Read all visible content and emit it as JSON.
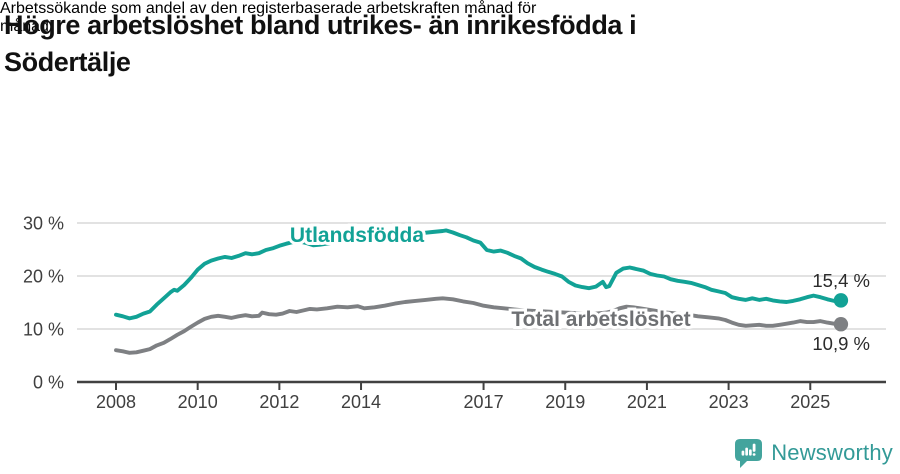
{
  "header": {
    "title_lines": [
      "Högre arbetslöshet bland utrikes- än inrikesfödda i",
      "Södertälje"
    ],
    "subtitle_lines": [
      "Arbetssökande som andel av den registerbaserade arbetskraften månad för",
      "månad."
    ]
  },
  "chart_data": {
    "type": "line",
    "title": "Högre arbetslöshet bland utrikes- än inrikesfödda i Södertälje",
    "subtitle": "Arbetssökande som andel av den registerbaserade arbetskraften månad för månad.",
    "xlabel": "",
    "ylabel": "",
    "grid": true,
    "legend_position": "inline-on-lines",
    "x_axis": {
      "ticks": [
        2008,
        2010,
        2012,
        2014,
        2017,
        2019,
        2021,
        2023,
        2025
      ],
      "tick_labels": [
        "2008",
        "2010",
        "2012",
        "2014",
        "2017",
        "2019",
        "2021",
        "2023",
        "2025"
      ],
      "range": [
        2007.05,
        2026.85
      ]
    },
    "y_axis": {
      "ticks": [
        0,
        10,
        20,
        30
      ],
      "tick_labels": [
        "0 %",
        "10 %",
        "20 %",
        "30 %"
      ],
      "range": [
        0,
        30
      ],
      "unit": "%"
    },
    "colors": {
      "grid": "#d9d9d9",
      "axis": "#414141",
      "axis_text": "#3f3f3f",
      "end_label_text": "#2b2b2b"
    },
    "series": [
      {
        "name": "Utlandsfödda",
        "color": "#12a296",
        "label_color": "#12a296",
        "end_label": "15,4 %",
        "end_value": 15.4,
        "points": [
          [
            2008.0,
            12.7
          ],
          [
            2008.17,
            12.4
          ],
          [
            2008.33,
            12.0
          ],
          [
            2008.5,
            12.3
          ],
          [
            2008.67,
            12.9
          ],
          [
            2008.83,
            13.3
          ],
          [
            2009.0,
            14.6
          ],
          [
            2009.17,
            15.8
          ],
          [
            2009.33,
            16.9
          ],
          [
            2009.42,
            17.4
          ],
          [
            2009.5,
            17.2
          ],
          [
            2009.67,
            18.3
          ],
          [
            2009.83,
            19.6
          ],
          [
            2010.0,
            21.2
          ],
          [
            2010.17,
            22.3
          ],
          [
            2010.33,
            22.9
          ],
          [
            2010.5,
            23.3
          ],
          [
            2010.67,
            23.6
          ],
          [
            2010.83,
            23.4
          ],
          [
            2011.0,
            23.8
          ],
          [
            2011.17,
            24.3
          ],
          [
            2011.33,
            24.1
          ],
          [
            2011.5,
            24.3
          ],
          [
            2011.67,
            24.9
          ],
          [
            2011.83,
            25.2
          ],
          [
            2012.0,
            25.7
          ],
          [
            2012.17,
            26.1
          ],
          [
            2012.33,
            26.4
          ],
          [
            2012.5,
            26.5
          ],
          [
            2012.67,
            26.2
          ],
          [
            2012.83,
            25.8
          ],
          [
            2013.0,
            25.9
          ],
          [
            2013.25,
            26.2
          ],
          [
            2013.5,
            26.5
          ],
          [
            2013.75,
            26.8
          ],
          [
            2014.0,
            27.1
          ],
          [
            2014.25,
            27.3
          ],
          [
            2014.5,
            27.4
          ],
          [
            2014.75,
            27.6
          ],
          [
            2015.0,
            27.9
          ],
          [
            2015.25,
            28.0
          ],
          [
            2015.5,
            28.1
          ],
          [
            2015.75,
            28.3
          ],
          [
            2016.0,
            28.5
          ],
          [
            2016.08,
            28.6
          ],
          [
            2016.25,
            28.2
          ],
          [
            2016.42,
            27.7
          ],
          [
            2016.58,
            27.3
          ],
          [
            2016.75,
            26.7
          ],
          [
            2016.92,
            26.3
          ],
          [
            2017.0,
            25.6
          ],
          [
            2017.08,
            24.9
          ],
          [
            2017.25,
            24.6
          ],
          [
            2017.42,
            24.8
          ],
          [
            2017.58,
            24.4
          ],
          [
            2017.75,
            23.8
          ],
          [
            2017.92,
            23.3
          ],
          [
            2018.08,
            22.4
          ],
          [
            2018.25,
            21.7
          ],
          [
            2018.42,
            21.2
          ],
          [
            2018.58,
            20.8
          ],
          [
            2018.75,
            20.4
          ],
          [
            2018.92,
            19.9
          ],
          [
            2019.08,
            18.9
          ],
          [
            2019.25,
            18.2
          ],
          [
            2019.42,
            17.9
          ],
          [
            2019.58,
            17.7
          ],
          [
            2019.75,
            18.0
          ],
          [
            2019.92,
            18.9
          ],
          [
            2020.0,
            17.9
          ],
          [
            2020.08,
            18.1
          ],
          [
            2020.25,
            20.6
          ],
          [
            2020.42,
            21.4
          ],
          [
            2020.58,
            21.6
          ],
          [
            2020.75,
            21.3
          ],
          [
            2020.92,
            21.0
          ],
          [
            2021.08,
            20.4
          ],
          [
            2021.25,
            20.1
          ],
          [
            2021.42,
            19.9
          ],
          [
            2021.58,
            19.4
          ],
          [
            2021.75,
            19.1
          ],
          [
            2021.92,
            18.9
          ],
          [
            2022.08,
            18.7
          ],
          [
            2022.25,
            18.3
          ],
          [
            2022.42,
            17.9
          ],
          [
            2022.58,
            17.4
          ],
          [
            2022.75,
            17.1
          ],
          [
            2022.92,
            16.8
          ],
          [
            2023.08,
            16.0
          ],
          [
            2023.25,
            15.7
          ],
          [
            2023.42,
            15.5
          ],
          [
            2023.58,
            15.8
          ],
          [
            2023.75,
            15.5
          ],
          [
            2023.92,
            15.7
          ],
          [
            2024.08,
            15.4
          ],
          [
            2024.25,
            15.2
          ],
          [
            2024.42,
            15.1
          ],
          [
            2024.58,
            15.3
          ],
          [
            2024.75,
            15.6
          ],
          [
            2024.92,
            16.0
          ],
          [
            2025.08,
            16.3
          ],
          [
            2025.25,
            16.0
          ],
          [
            2025.42,
            15.6
          ],
          [
            2025.58,
            15.3
          ],
          [
            2025.75,
            15.4
          ]
        ]
      },
      {
        "name": "Total arbetslöshet",
        "color": "#7e8083",
        "label_color": "#6e7073",
        "end_label": "10,9 %",
        "end_value": 10.9,
        "points": [
          [
            2008.0,
            6.0
          ],
          [
            2008.17,
            5.8
          ],
          [
            2008.33,
            5.5
          ],
          [
            2008.5,
            5.6
          ],
          [
            2008.67,
            5.9
          ],
          [
            2008.83,
            6.2
          ],
          [
            2009.0,
            6.9
          ],
          [
            2009.17,
            7.4
          ],
          [
            2009.33,
            8.1
          ],
          [
            2009.5,
            8.9
          ],
          [
            2009.67,
            9.6
          ],
          [
            2009.83,
            10.4
          ],
          [
            2010.0,
            11.2
          ],
          [
            2010.17,
            11.9
          ],
          [
            2010.33,
            12.3
          ],
          [
            2010.5,
            12.5
          ],
          [
            2010.67,
            12.3
          ],
          [
            2010.83,
            12.1
          ],
          [
            2011.0,
            12.4
          ],
          [
            2011.17,
            12.6
          ],
          [
            2011.33,
            12.4
          ],
          [
            2011.5,
            12.5
          ],
          [
            2011.58,
            13.1
          ],
          [
            2011.75,
            12.8
          ],
          [
            2011.92,
            12.7
          ],
          [
            2012.08,
            12.9
          ],
          [
            2012.25,
            13.4
          ],
          [
            2012.42,
            13.2
          ],
          [
            2012.58,
            13.5
          ],
          [
            2012.75,
            13.8
          ],
          [
            2012.92,
            13.7
          ],
          [
            2013.17,
            13.9
          ],
          [
            2013.42,
            14.2
          ],
          [
            2013.67,
            14.1
          ],
          [
            2013.92,
            14.3
          ],
          [
            2014.08,
            13.9
          ],
          [
            2014.33,
            14.1
          ],
          [
            2014.58,
            14.4
          ],
          [
            2014.83,
            14.8
          ],
          [
            2015.08,
            15.1
          ],
          [
            2015.33,
            15.3
          ],
          [
            2015.58,
            15.5
          ],
          [
            2015.83,
            15.7
          ],
          [
            2016.0,
            15.8
          ],
          [
            2016.25,
            15.6
          ],
          [
            2016.5,
            15.2
          ],
          [
            2016.75,
            14.9
          ],
          [
            2017.0,
            14.4
          ],
          [
            2017.25,
            14.1
          ],
          [
            2017.5,
            13.9
          ],
          [
            2017.75,
            13.7
          ],
          [
            2018.0,
            13.5
          ],
          [
            2018.25,
            13.4
          ],
          [
            2018.5,
            13.3
          ],
          [
            2018.75,
            13.2
          ],
          [
            2019.0,
            13.1
          ],
          [
            2019.25,
            13.0
          ],
          [
            2019.5,
            12.9
          ],
          [
            2019.75,
            12.9
          ],
          [
            2020.0,
            13.1
          ],
          [
            2020.17,
            13.4
          ],
          [
            2020.33,
            13.9
          ],
          [
            2020.5,
            14.2
          ],
          [
            2020.67,
            14.1
          ],
          [
            2020.83,
            13.9
          ],
          [
            2021.0,
            13.7
          ],
          [
            2021.25,
            13.4
          ],
          [
            2021.5,
            13.1
          ],
          [
            2021.75,
            12.9
          ],
          [
            2022.0,
            12.7
          ],
          [
            2022.25,
            12.4
          ],
          [
            2022.5,
            12.2
          ],
          [
            2022.75,
            12.0
          ],
          [
            2022.92,
            11.7
          ],
          [
            2023.08,
            11.2
          ],
          [
            2023.25,
            10.8
          ],
          [
            2023.42,
            10.6
          ],
          [
            2023.58,
            10.7
          ],
          [
            2023.75,
            10.8
          ],
          [
            2023.92,
            10.6
          ],
          [
            2024.08,
            10.6
          ],
          [
            2024.25,
            10.8
          ],
          [
            2024.42,
            11.0
          ],
          [
            2024.58,
            11.2
          ],
          [
            2024.75,
            11.5
          ],
          [
            2024.92,
            11.3
          ],
          [
            2025.08,
            11.3
          ],
          [
            2025.25,
            11.5
          ],
          [
            2025.42,
            11.2
          ],
          [
            2025.58,
            11.0
          ],
          [
            2025.75,
            10.9
          ]
        ]
      }
    ]
  },
  "footer": {
    "brand": "Newsworthy",
    "brand_color": "#339a97",
    "badge_color": "#43a49d",
    "logo_icon": "newsworthy-badge-icon"
  }
}
